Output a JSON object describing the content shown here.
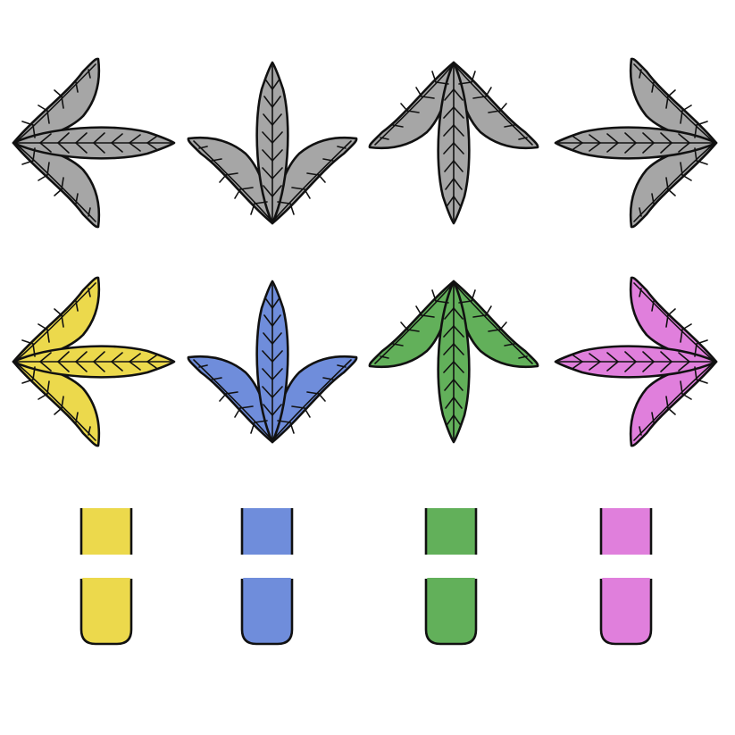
{
  "receptors": [
    {
      "direction": "left",
      "color": "#a6a6a6"
    },
    {
      "direction": "down",
      "color": "#a6a6a6"
    },
    {
      "direction": "up",
      "color": "#a6a6a6"
    },
    {
      "direction": "right",
      "color": "#a6a6a6"
    }
  ],
  "notes": [
    {
      "direction": "left",
      "color": "#ecd94c"
    },
    {
      "direction": "down",
      "color": "#6f8ddb"
    },
    {
      "direction": "up",
      "color": "#62b05a"
    },
    {
      "direction": "right",
      "color": "#e07fdc"
    }
  ],
  "hold_tails": [
    {
      "lane": "left",
      "color": "#ecd94c"
    },
    {
      "lane": "down",
      "color": "#6f8ddb"
    },
    {
      "lane": "up",
      "color": "#62b05a"
    },
    {
      "lane": "right",
      "color": "#e07fdc"
    }
  ],
  "outline_color": "#111111",
  "icons": {
    "arrow": "leaf-arrow-icon",
    "hold": "hold-tail-icon"
  }
}
